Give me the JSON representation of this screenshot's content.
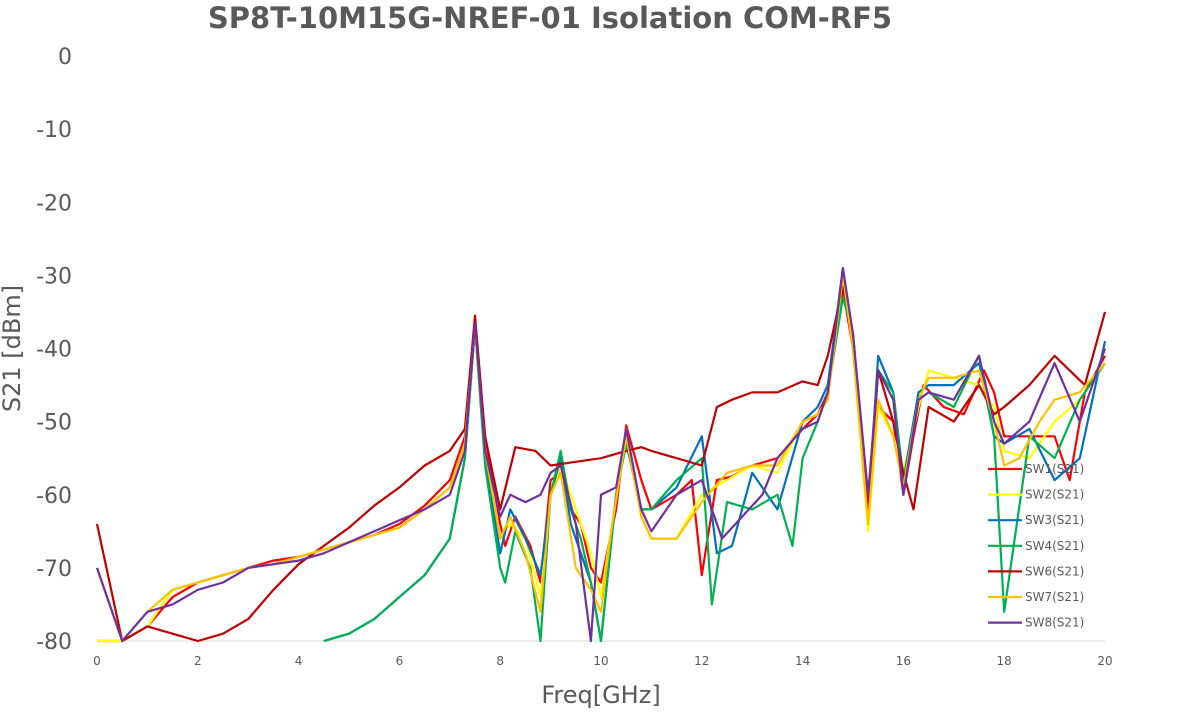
{
  "chart_data": {
    "type": "line",
    "title": "SP8T-10M15G-NREF-01  Isolation   COM-RF5",
    "xlabel": "Freq[GHz]",
    "ylabel": "S21  [dBm]",
    "xlim": [
      0,
      20
    ],
    "ylim": [
      -80,
      0
    ],
    "xticks": [
      0,
      2,
      4,
      6,
      8,
      10,
      12,
      14,
      16,
      18,
      20
    ],
    "yticks": [
      0,
      -10,
      -20,
      -30,
      -40,
      -50,
      -60,
      -70,
      -80
    ],
    "grid": false,
    "legend_position": "right",
    "series": [
      {
        "name": "SW1(S21)",
        "color": "#FF0000",
        "x": [
          0,
          0.5,
          1,
          1.5,
          2,
          2.5,
          3,
          3.5,
          4,
          4.5,
          5,
          5.5,
          6,
          6.5,
          7,
          7.3,
          7.5,
          7.7,
          8.0,
          8.1,
          8.3,
          8.6,
          8.8,
          9.0,
          9.2,
          9.4,
          9.6,
          9.8,
          10.0,
          10.3,
          10.5,
          10.8,
          11.0,
          11.5,
          11.8,
          12.0,
          12.3,
          12.6,
          13.0,
          13.5,
          14.0,
          14.3,
          14.5,
          14.8,
          15.0,
          15.3,
          15.5,
          15.8,
          16.0,
          16.2,
          16.4,
          16.8,
          17.2,
          17.6,
          17.8,
          18.0,
          18.5,
          19.0,
          19.3,
          19.6,
          20
        ],
        "values": [
          -80,
          -80,
          -78,
          -74,
          -72,
          -71,
          -70,
          -69,
          -68.5,
          -67.5,
          -66.5,
          -65.5,
          -64,
          -61.5,
          -58,
          -52,
          -36.5,
          -52,
          -64,
          -67,
          -63,
          -67,
          -72,
          -58,
          -57,
          -62,
          -64,
          -70,
          -72,
          -62,
          -50.5,
          -58,
          -62,
          -60,
          -58,
          -71,
          -58,
          -57.5,
          -56,
          -55,
          -51,
          -49,
          -46,
          -32,
          -40,
          -60,
          -48,
          -50,
          -60,
          -52,
          -45,
          -48,
          -49,
          -43,
          -46,
          -52,
          -52,
          -52,
          -58,
          -46,
          -41
        ]
      },
      {
        "name": "SW2(S21)",
        "color": "#FFFF00",
        "x": [
          0,
          0.5,
          1,
          1.5,
          2,
          2.5,
          3,
          3.5,
          4,
          4.5,
          5,
          5.5,
          6,
          6.5,
          7,
          7.3,
          7.5,
          7.7,
          8.0,
          8.2,
          8.5,
          8.8,
          9.0,
          9.2,
          9.5,
          9.8,
          10.0,
          10.2,
          10.5,
          10.8,
          11.0,
          11.5,
          12.0,
          12.5,
          13.0,
          13.5,
          14.0,
          14.3,
          14.5,
          14.8,
          15.0,
          15.3,
          15.5,
          15.8,
          16.0,
          16.3,
          16.5,
          17.0,
          17.5,
          17.8,
          18.0,
          18.5,
          19.0,
          19.5,
          20
        ],
        "values": [
          -80,
          -80,
          -78,
          -73,
          -72,
          -71,
          -70,
          -69.5,
          -68.5,
          -67.5,
          -66.5,
          -65.5,
          -64.5,
          -62,
          -59,
          -53,
          -37,
          -54,
          -66,
          -64,
          -66,
          -74,
          -60,
          -56,
          -62,
          -68,
          -74,
          -65,
          -51,
          -63,
          -66,
          -66,
          -60,
          -58,
          -56,
          -57,
          -50,
          -49,
          -47,
          -30,
          -40,
          -65,
          -48,
          -52,
          -57,
          -48,
          -43,
          -44,
          -45,
          -48,
          -54,
          -55,
          -50,
          -47,
          -42
        ]
      },
      {
        "name": "SW3(S21)",
        "color": "#0070C0",
        "x": [
          4.5,
          5.0,
          5.5,
          6.0,
          6.5,
          7.0,
          7.3,
          7.5,
          7.7,
          8.0,
          8.2,
          8.5,
          8.8,
          9.0,
          9.2,
          9.4,
          9.6,
          9.8,
          10.0,
          10.3,
          10.5,
          10.8,
          11.0,
          11.5,
          12.0,
          12.3,
          12.6,
          13.0,
          13.5,
          14.0,
          14.3,
          14.5,
          14.8,
          15.0,
          15.3,
          15.5,
          15.8,
          16.0,
          16.3,
          16.5,
          17.0,
          17.5,
          17.8,
          18.0,
          18.5,
          19.0,
          19.5,
          20
        ],
        "values": [
          -80,
          -79,
          -77,
          -74,
          -71,
          -66,
          -55,
          -37,
          -55,
          -68,
          -62,
          -66,
          -71,
          -60,
          -55,
          -64,
          -68,
          -72,
          -80,
          -60,
          -52,
          -62,
          -62,
          -59,
          -52,
          -68,
          -67,
          -57,
          -62,
          -50,
          -48,
          -45,
          -29,
          -40,
          -62,
          -41,
          -46,
          -58,
          -46,
          -45,
          -45,
          -42,
          -52,
          -53,
          -51,
          -58,
          -55,
          -39
        ]
      },
      {
        "name": "SW4(S21)",
        "color": "#00B050",
        "x": [
          4.5,
          5.0,
          5.5,
          6.0,
          6.5,
          7.0,
          7.3,
          7.5,
          7.7,
          8.0,
          8.1,
          8.3,
          8.6,
          8.8,
          9.0,
          9.2,
          9.4,
          9.6,
          9.8,
          10.0,
          10.3,
          10.5,
          10.8,
          11.0,
          11.5,
          12.0,
          12.2,
          12.5,
          13.0,
          13.5,
          13.8,
          14.0,
          14.3,
          14.5,
          14.8,
          15.0,
          15.3,
          15.5,
          15.8,
          16.0,
          16.3,
          16.5,
          17.0,
          17.5,
          17.8,
          18.0,
          18.5,
          19.0,
          19.5,
          20
        ],
        "values": [
          -80,
          -79,
          -77,
          -74,
          -71,
          -66,
          -55,
          -37,
          -56,
          -70,
          -72,
          -65,
          -70,
          -80,
          -60,
          -54,
          -62,
          -66,
          -72,
          -80,
          -60,
          -53,
          -62,
          -62,
          -58,
          -55,
          -75,
          -61,
          -62,
          -60,
          -67,
          -55,
          -50,
          -46,
          -33,
          -38,
          -62,
          -43,
          -46,
          -58,
          -47,
          -46,
          -48,
          -41,
          -52,
          -76,
          -52,
          -55,
          -47,
          -42
        ]
      },
      {
        "name": "SW6(S21)",
        "color": "#C00000",
        "x": [
          0,
          0.5,
          1,
          1.5,
          2,
          2.5,
          3,
          3.5,
          4,
          4.5,
          5,
          5.5,
          6,
          6.5,
          7,
          7.3,
          7.5,
          7.7,
          8.0,
          8.3,
          8.7,
          9.0,
          9.5,
          10.0,
          10.5,
          10.8,
          11.0,
          11.5,
          12.0,
          12.3,
          12.6,
          13.0,
          13.5,
          14.0,
          14.3,
          14.5,
          14.8,
          15.0,
          15.3,
          15.5,
          15.8,
          16.0,
          16.2,
          16.5,
          17.0,
          17.5,
          17.8,
          18.0,
          18.5,
          19.0,
          19.3,
          19.6,
          20
        ],
        "values": [
          -64,
          -80,
          -78,
          -79,
          -80,
          -79,
          -77,
          -73,
          -69.5,
          -67,
          -64.5,
          -61.5,
          -59,
          -56,
          -54,
          -51,
          -35.5,
          -52,
          -62,
          -53.5,
          -54,
          -56,
          -55.5,
          -55,
          -54,
          -53.5,
          -54,
          -55,
          -56,
          -48,
          -47,
          -46,
          -46,
          -44.5,
          -45,
          -41,
          -31.5,
          -38,
          -62,
          -43,
          -50,
          -57,
          -62,
          -48,
          -50,
          -45,
          -49,
          -48,
          -45,
          -41,
          -43,
          -45,
          -35
        ]
      },
      {
        "name": "SW7(S21)",
        "color": "#FFC000",
        "x": [
          0,
          0.5,
          1,
          1.5,
          2,
          2.5,
          3,
          3.5,
          4,
          4.5,
          5,
          5.5,
          6,
          6.5,
          7,
          7.3,
          7.5,
          7.7,
          8.0,
          8.2,
          8.5,
          8.8,
          9.0,
          9.2,
          9.5,
          9.8,
          10.0,
          10.2,
          10.5,
          10.8,
          11.0,
          11.5,
          12.0,
          12.5,
          13.0,
          13.5,
          14.0,
          14.3,
          14.5,
          14.8,
          15.0,
          15.3,
          15.5,
          15.8,
          16.0,
          16.3,
          16.5,
          17.0,
          17.5,
          17.8,
          18.0,
          18.3,
          18.7,
          19.0,
          19.5,
          20
        ],
        "values": [
          -70,
          -80,
          -76,
          -73,
          -72,
          -71,
          -70,
          -69.5,
          -68.5,
          -67.5,
          -66.5,
          -65.5,
          -64.5,
          -62,
          -59,
          -53,
          -37,
          -54,
          -66,
          -63,
          -68,
          -76,
          -60,
          -57,
          -70,
          -73,
          -76,
          -65,
          -52,
          -63,
          -66,
          -66,
          -61,
          -57,
          -56,
          -56,
          -50,
          -49,
          -47,
          -30,
          -40,
          -64,
          -47,
          -52,
          -59,
          -47,
          -44,
          -44,
          -43,
          -50,
          -56,
          -55,
          -50,
          -47,
          -46,
          -42
        ]
      },
      {
        "name": "SW8(S21)",
        "color": "#7030A0",
        "x": [
          0,
          0.5,
          1,
          1.5,
          2,
          2.5,
          3,
          3.5,
          4,
          4.5,
          5,
          5.5,
          6,
          6.5,
          7,
          7.3,
          7.5,
          7.7,
          8.0,
          8.2,
          8.5,
          8.8,
          9.0,
          9.2,
          9.5,
          9.8,
          10.0,
          10.3,
          10.5,
          10.8,
          11.0,
          11.5,
          12.0,
          12.4,
          12.8,
          13.2,
          13.5,
          14.0,
          14.3,
          14.5,
          14.8,
          15.0,
          15.3,
          15.5,
          15.8,
          16.0,
          16.3,
          16.5,
          17.0,
          17.5,
          17.8,
          18.0,
          18.5,
          19.0,
          19.5,
          20
        ],
        "values": [
          -70,
          -80,
          -76,
          -75,
          -73,
          -72,
          -70,
          -69.5,
          -69,
          -68,
          -66.5,
          -65,
          -63.5,
          -62,
          -60,
          -54,
          -36.5,
          -54,
          -63,
          -60,
          -61,
          -60,
          -57,
          -56,
          -64,
          -80,
          -60,
          -59,
          -51,
          -62,
          -65,
          -60,
          -58,
          -66,
          -63,
          -60,
          -55,
          -51,
          -50,
          -46,
          -29,
          -38,
          -60,
          -43,
          -47,
          -60,
          -47,
          -46,
          -47,
          -41,
          -50,
          -53,
          -50,
          -42,
          -50,
          -40
        ]
      }
    ]
  }
}
